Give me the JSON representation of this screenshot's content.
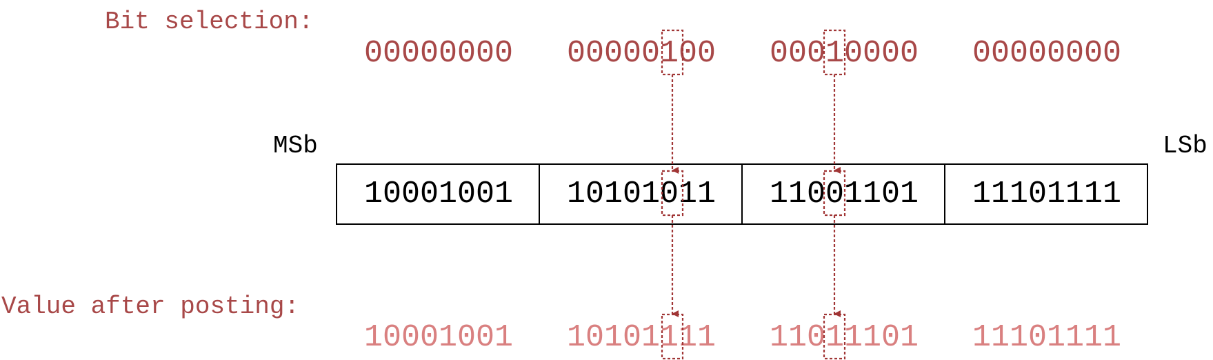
{
  "labels": {
    "bit_selection": "Bit selection:",
    "value_after_posting": "Value after posting:",
    "msb": "MSb",
    "lsb": "LSb"
  },
  "bytes": {
    "selection": [
      "00000000",
      "00000100",
      "00010000",
      "00000000"
    ],
    "register": [
      "10001001",
      "10101011",
      "11001101",
      "11101111"
    ],
    "posted": [
      "10001001",
      "10101111",
      "11011101",
      "11101111"
    ]
  },
  "highlighted_bits": [
    {
      "byte": 1,
      "bit_position": 5
    },
    {
      "byte": 2,
      "bit_position": 3
    }
  ],
  "colors": {
    "selection": "#a84848",
    "posted": "#d98080",
    "register": "#000000",
    "arrow": "#a03535"
  }
}
